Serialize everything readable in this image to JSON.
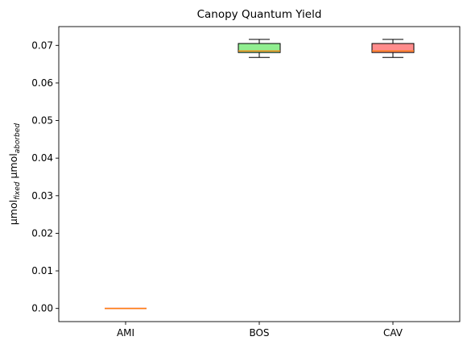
{
  "chart_data": {
    "type": "box",
    "title": "Canopy Quantum Yield",
    "xlabel": "",
    "ylabel": {
      "base1": "µmol",
      "sub1": "fixed",
      "base2": " µmol",
      "sub2": "aborbed"
    },
    "ylim": [
      -0.0035,
      0.075
    ],
    "yticks": [
      0.0,
      0.01,
      0.02,
      0.03,
      0.04,
      0.05,
      0.06,
      0.07
    ],
    "ytick_labels": [
      "0.00",
      "0.01",
      "0.02",
      "0.03",
      "0.04",
      "0.05",
      "0.06",
      "0.07"
    ],
    "categories": [
      "AMI",
      "BOS",
      "CAV"
    ],
    "boxes": [
      {
        "category": "AMI",
        "whisker_low": 0.0,
        "q1": 0.0,
        "median": 0.0,
        "q3": 0.0,
        "whisker_high": 0.0,
        "color": "#f4a0a0",
        "median_color": "#ff7f0e"
      },
      {
        "category": "BOS",
        "whisker_low": 0.0668,
        "q1": 0.0681,
        "median": 0.0685,
        "q3": 0.0705,
        "whisker_high": 0.0716,
        "color": "#90ee90",
        "median_color": "#ff7f0e"
      },
      {
        "category": "CAV",
        "whisker_low": 0.0668,
        "q1": 0.0681,
        "median": 0.0685,
        "q3": 0.0705,
        "whisker_high": 0.0716,
        "color": "#ff8c8c",
        "median_color": "#ff7f0e"
      }
    ],
    "grid": false
  }
}
